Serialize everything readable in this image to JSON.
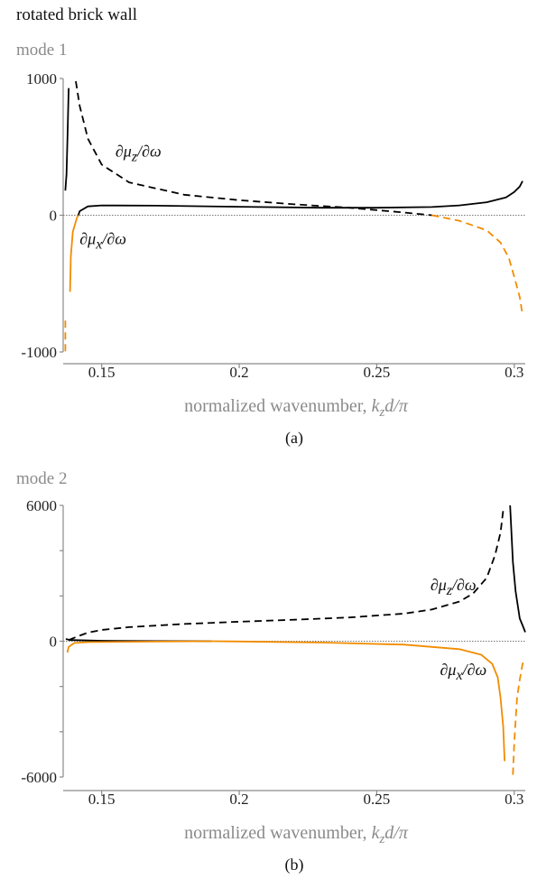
{
  "title": "rotated brick wall",
  "colors": {
    "black": "#000000",
    "orange": "#f28c00",
    "axis": "#8a8a8a",
    "zero": "#777777"
  },
  "chart_data": [
    {
      "panel_title": "mode 1",
      "caption": "(a)",
      "type": "line",
      "xlabel_prefix": "normalized wavenumber, ",
      "xlabel_math": "k",
      "xlabel_sub": "z",
      "xlabel_suffix": "d/π",
      "xlim": [
        0.136,
        0.304
      ],
      "ylim": [
        -1000,
        1000
      ],
      "xticks": [
        0.15,
        0.2,
        0.25,
        0.3
      ],
      "xtick_labels": [
        "0.15",
        "0.2",
        "0.25",
        "0.3"
      ],
      "yticks": [
        -1000,
        0,
        1000
      ],
      "ytick_labels": [
        "-1000",
        "0",
        "1000"
      ],
      "zero_line": true,
      "series": [
        {
          "color": "black",
          "dash": false,
          "points": [
            [
              0.1368,
              180
            ],
            [
              0.1372,
              300
            ],
            [
              0.1376,
              600
            ],
            [
              0.138,
              930
            ]
          ]
        },
        {
          "color": "black",
          "dash": true,
          "points": [
            [
              0.1406,
              980
            ],
            [
              0.142,
              800
            ],
            [
              0.145,
              560
            ],
            [
              0.15,
              370
            ],
            [
              0.16,
              240
            ],
            [
              0.18,
              150
            ],
            [
              0.2,
              110
            ],
            [
              0.22,
              80
            ],
            [
              0.24,
              55
            ],
            [
              0.26,
              20
            ],
            [
              0.27,
              0
            ]
          ]
        },
        {
          "color": "orange",
          "dash": true,
          "points": [
            [
              0.27,
              0
            ],
            [
              0.28,
              -40
            ],
            [
              0.29,
              -110
            ],
            [
              0.295,
              -200
            ],
            [
              0.298,
              -310
            ],
            [
              0.3,
              -450
            ],
            [
              0.302,
              -600
            ],
            [
              0.303,
              -730
            ]
          ]
        },
        {
          "color": "orange",
          "dash": true,
          "points": [
            [
              0.1368,
              -770
            ],
            [
              0.1368,
              -1010
            ]
          ]
        },
        {
          "color": "orange",
          "dash": false,
          "points": [
            [
              0.1385,
              -560
            ],
            [
              0.1388,
              -300
            ],
            [
              0.1395,
              -120
            ],
            [
              0.141,
              -20
            ],
            [
              0.1415,
              0
            ]
          ]
        },
        {
          "color": "black",
          "dash": false,
          "points": [
            [
              0.1415,
              0
            ],
            [
              0.142,
              30
            ],
            [
              0.145,
              65
            ],
            [
              0.15,
              72
            ],
            [
              0.17,
              70
            ],
            [
              0.2,
              62
            ],
            [
              0.23,
              55
            ],
            [
              0.25,
              55
            ],
            [
              0.27,
              60
            ],
            [
              0.28,
              72
            ],
            [
              0.29,
              95
            ],
            [
              0.297,
              130
            ],
            [
              0.3,
              170
            ],
            [
              0.302,
              210
            ],
            [
              0.303,
              250
            ]
          ]
        }
      ],
      "annotations": [
        {
          "x": 0.155,
          "y": 430,
          "base": "∂μ",
          "sub": "z",
          "tail": "/∂ω"
        },
        {
          "x": 0.142,
          "y": -210,
          "base": "∂μ",
          "sub": "x",
          "tail": "/∂ω"
        }
      ]
    },
    {
      "panel_title": "mode 2",
      "caption": "(b)",
      "type": "line",
      "xlabel_prefix": "normalized wavenumber, ",
      "xlabel_math": "k",
      "xlabel_sub": "z",
      "xlabel_suffix": "d/π",
      "xlim": [
        0.136,
        0.304
      ],
      "ylim": [
        -6000,
        6000
      ],
      "xticks": [
        0.15,
        0.2,
        0.25,
        0.3
      ],
      "xtick_labels": [
        "0.15",
        "0.2",
        "0.25",
        "0.3"
      ],
      "yticks": [
        -6000,
        -4000,
        -2000,
        0,
        2000,
        4000,
        6000
      ],
      "ytick_labels": [
        "-6000",
        "",
        "",
        "0",
        "",
        "",
        "6000"
      ],
      "zero_line": true,
      "series": [
        {
          "color": "black",
          "dash": true,
          "points": [
            [
              0.138,
              50
            ],
            [
              0.141,
              200
            ],
            [
              0.145,
              380
            ],
            [
              0.15,
              500
            ],
            [
              0.16,
              620
            ],
            [
              0.18,
              760
            ],
            [
              0.2,
              860
            ],
            [
              0.22,
              950
            ],
            [
              0.24,
              1050
            ],
            [
              0.26,
              1220
            ],
            [
              0.27,
              1400
            ],
            [
              0.28,
              1750
            ],
            [
              0.285,
              2100
            ],
            [
              0.29,
              2800
            ],
            [
              0.293,
              3800
            ],
            [
              0.295,
              4800
            ],
            [
              0.296,
              5800
            ]
          ]
        },
        {
          "color": "black",
          "dash": false,
          "points": [
            [
              0.2985,
              6000
            ],
            [
              0.2995,
              3500
            ],
            [
              0.3005,
              2200
            ],
            [
              0.302,
              1000
            ],
            [
              0.303,
              700
            ],
            [
              0.304,
              400
            ]
          ]
        },
        {
          "color": "black",
          "dash": false,
          "points": [
            [
              0.137,
              100
            ],
            [
              0.1385,
              50
            ],
            [
              0.15,
              20
            ],
            [
              0.17,
              5
            ],
            [
              0.19,
              0
            ]
          ]
        },
        {
          "color": "orange",
          "dash": false,
          "points": [
            [
              0.1375,
              -500
            ],
            [
              0.138,
              -250
            ],
            [
              0.14,
              -80
            ],
            [
              0.145,
              -40
            ],
            [
              0.17,
              -15
            ],
            [
              0.19,
              0
            ],
            [
              0.2,
              -10
            ],
            [
              0.23,
              -60
            ],
            [
              0.26,
              -150
            ],
            [
              0.28,
              -350
            ],
            [
              0.288,
              -600
            ],
            [
              0.292,
              -1000
            ],
            [
              0.294,
              -1600
            ],
            [
              0.295,
              -2500
            ],
            [
              0.296,
              -3800
            ],
            [
              0.2965,
              -5300
            ]
          ]
        },
        {
          "color": "orange",
          "dash": true,
          "points": [
            [
              0.2995,
              -5900
            ],
            [
              0.3,
              -4500
            ],
            [
              0.3005,
              -3500
            ],
            [
              0.301,
              -2500
            ],
            [
              0.302,
              -1700
            ],
            [
              0.303,
              -1000
            ],
            [
              0.304,
              -800
            ]
          ]
        }
      ],
      "annotations": [
        {
          "x": 0.2695,
          "y": 2250,
          "base": "∂μ",
          "sub": "z",
          "tail": "/∂ω"
        },
        {
          "x": 0.273,
          "y": -1500,
          "base": "∂μ",
          "sub": "x",
          "tail": "/∂ω"
        }
      ]
    }
  ]
}
